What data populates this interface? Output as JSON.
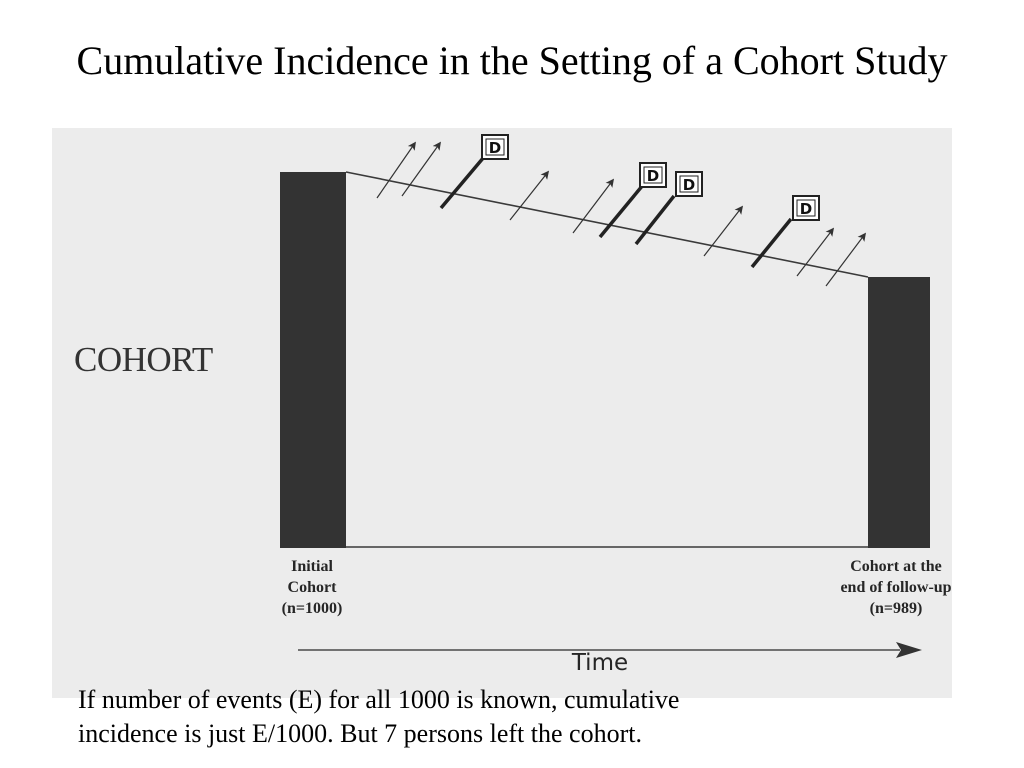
{
  "title": "Cumulative Incidence in the Setting of a Cohort Study",
  "diagram": {
    "cohort_label": "COHORT",
    "initial_cohort": [
      "Initial",
      "Cohort",
      "(n=1000)"
    ],
    "end_cohort": [
      "Cohort at the",
      "end of follow-up",
      "(n=989)"
    ],
    "time_axis_label": "Time",
    "death_marker_label": "D",
    "colors": {
      "bar": "#333333",
      "line": "#3a3a3a",
      "arrow": "#333333",
      "background": "#ececec"
    }
  },
  "caption": {
    "line1": "If number of events (E) for all 1000 is known, cumulative",
    "line2": "incidence is just E/1000.  But 7 persons left the cohort."
  }
}
